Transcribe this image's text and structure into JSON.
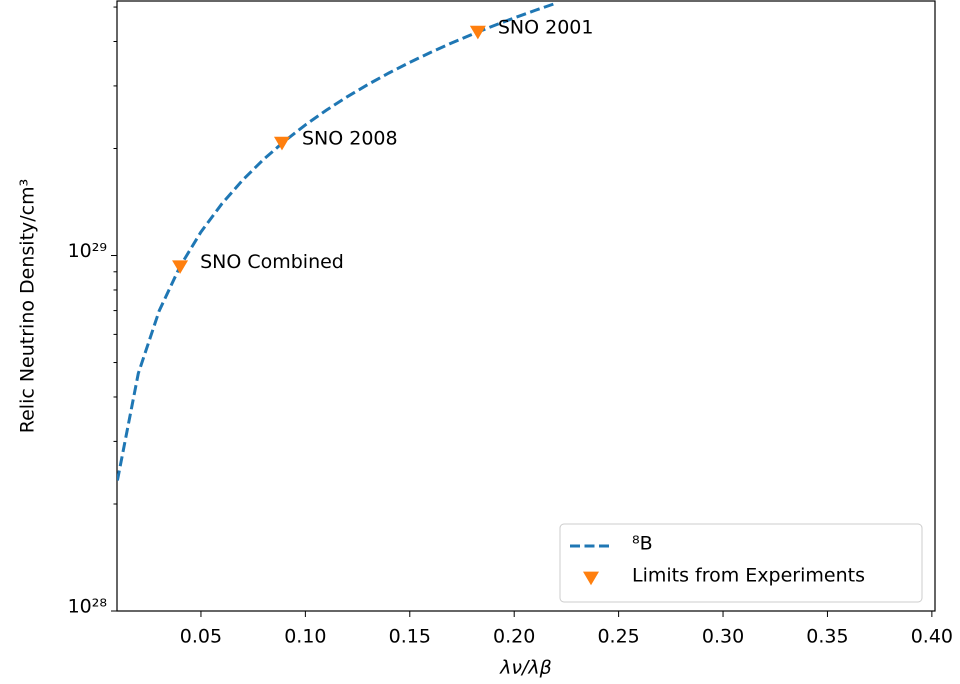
{
  "chart_data": {
    "type": "line",
    "x_label": "λν/λβ",
    "y_label": "Relic Neutrino Density/cm³",
    "xlim": [
      0.0098,
      0.4015
    ],
    "ylim": [
      1e+28,
      5.2e+29
    ],
    "ylog": true,
    "grid": false,
    "legend": "lower right",
    "xticks": [
      0.05,
      {
        "value": 0.1,
        "label": "0.10"
      },
      0.15,
      {
        "value": 0.2,
        "label": "0.20"
      },
      0.25,
      {
        "value": 0.3,
        "label": "0.30"
      },
      0.35,
      {
        "value": 0.4,
        "label": "0.40"
      }
    ],
    "yticks": [
      {
        "value": 1e+28,
        "label": "10²⁸"
      },
      {
        "value": 1e+29,
        "label": "10²⁹"
      }
    ],
    "yminorticks": [
      2e+28,
      3e+28,
      4e+28,
      5e+28,
      6e+28,
      7e+28,
      8e+28,
      9e+28,
      2e+29,
      3e+29,
      4e+29,
      5e+29
    ],
    "series": [
      {
        "name": "⁸B",
        "color": "#1f77b4",
        "style": "dashed",
        "x": [
          0.01,
          0.02,
          0.03,
          0.04,
          0.05,
          0.06,
          0.07,
          0.08,
          0.09,
          0.1,
          0.11,
          0.12,
          0.13,
          0.14,
          0.15,
          0.16,
          0.17,
          0.18,
          0.19,
          0.2,
          0.21,
          0.22
        ],
        "values": [
          2.33e+28,
          4.66e+28,
          6.99e+28,
          9.32e+28,
          1.165e+29,
          1.398e+29,
          1.631e+29,
          1.864e+29,
          2.097e+29,
          2.33e+29,
          2.563e+29,
          2.796e+29,
          3.029e+29,
          3.262e+29,
          3.495e+29,
          3.728e+29,
          3.961e+29,
          4.194e+29,
          4.427e+29,
          4.66e+29,
          4.893e+29,
          5.126e+29
        ]
      },
      {
        "name": "Limits from Experiments",
        "color": "#ff7f0e",
        "marker": "v",
        "x": [
          0.04,
          0.0888,
          0.1826
        ],
        "values": [
          9.3e+28,
          2.07e+29,
          4.25e+29
        ],
        "labels": [
          "SNO Combined",
          "SNO 2008",
          "SNO 2001"
        ]
      }
    ]
  }
}
